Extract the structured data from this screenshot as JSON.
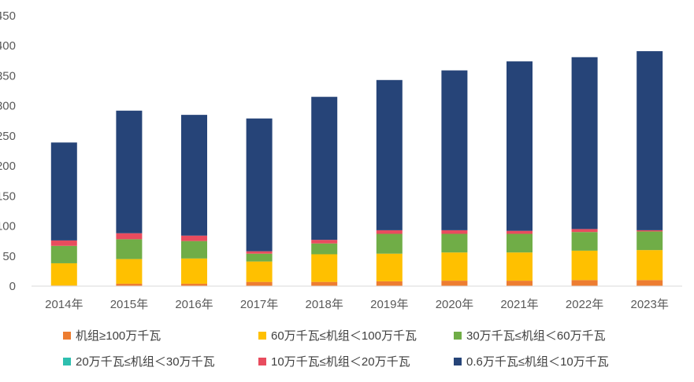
{
  "chart_data": {
    "type": "bar",
    "stacked": true,
    "categories": [
      "2014年",
      "2015年",
      "2016年",
      "2017年",
      "2018年",
      "2019年",
      "2020年",
      "2021年",
      "2022年",
      "2023年"
    ],
    "ylim": [
      0,
      450
    ],
    "yticks": [
      "0",
      "50",
      "100",
      "150",
      "200",
      "250",
      "300",
      "350",
      "400",
      "450"
    ],
    "grid": false,
    "legend_position": "bottom",
    "series": [
      {
        "name": "机组≥100万千瓦",
        "color": "#ED7D31",
        "values": [
          1,
          4,
          4,
          7,
          7,
          8,
          9,
          9,
          10,
          10
        ]
      },
      {
        "name": "60万千瓦≤机组＜100万千瓦",
        "color": "#FFC000",
        "values": [
          37,
          41,
          42,
          34,
          46,
          46,
          47,
          47,
          49,
          50
        ]
      },
      {
        "name": "30万千瓦≤机组＜60万千瓦",
        "color": "#70AD47",
        "values": [
          29,
          33,
          29,
          13,
          18,
          33,
          31,
          31,
          31,
          31
        ]
      },
      {
        "name": "20万千瓦≤机组＜30万千瓦",
        "color": "#2EBFAF",
        "values": [
          0,
          0,
          0,
          0,
          0,
          0,
          0,
          0,
          0,
          0
        ]
      },
      {
        "name": "10万千瓦≤机组＜20万千瓦",
        "color": "#E84C5E",
        "values": [
          9,
          10,
          9,
          4,
          6,
          6,
          6,
          5,
          5,
          2
        ]
      },
      {
        "name": "0.6万千瓦≤机组＜10万千瓦",
        "color": "#264478",
        "values": [
          163,
          204,
          201,
          221,
          238,
          250,
          266,
          282,
          286,
          298
        ]
      }
    ]
  }
}
